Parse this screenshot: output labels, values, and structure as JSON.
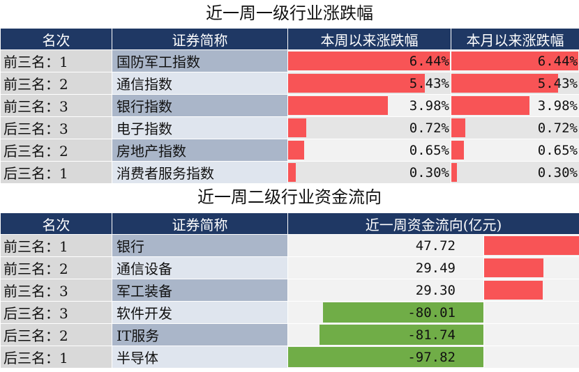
{
  "title1": "近一周一级行业涨跌幅",
  "title2": "近一周二级行业资金流向",
  "table1": {
    "headers": [
      "名次",
      "证券简称",
      "本周以来涨跌幅",
      "本月以来涨跌幅"
    ],
    "rows": [
      {
        "rank": "前三名：1",
        "name": "国防军工指数",
        "week": 6.44,
        "week_label": "6.44%",
        "month": 6.44,
        "month_label": "6.44%"
      },
      {
        "rank": "前三名：2",
        "name": "通信指数",
        "week": 5.43,
        "week_label": "5.43%",
        "month": 5.43,
        "month_label": "5.43%"
      },
      {
        "rank": "前三名：3",
        "name": "银行指数",
        "week": 3.98,
        "week_label": "3.98%",
        "month": 3.98,
        "month_label": "3.98%"
      },
      {
        "rank": "后三名：3",
        "name": "电子指数",
        "week": 0.72,
        "week_label": "0.72%",
        "month": 0.72,
        "month_label": "0.72%"
      },
      {
        "rank": "后三名：2",
        "name": "房地产指数",
        "week": 0.65,
        "week_label": "0.65%",
        "month": 0.65,
        "month_label": "0.65%"
      },
      {
        "rank": "后三名：1",
        "name": "消费者服务指数",
        "week": 0.3,
        "week_label": "0.30%",
        "month": 0.3,
        "month_label": "0.30%"
      }
    ]
  },
  "table2": {
    "headers": [
      "名次",
      "证券简称",
      "近一周资金流向(亿元)"
    ],
    "rows": [
      {
        "rank": "前三名：1",
        "name": "银行",
        "flow": 47.72,
        "flow_label": "47.72"
      },
      {
        "rank": "前三名：2",
        "name": "通信设备",
        "flow": 29.49,
        "flow_label": "29.49"
      },
      {
        "rank": "前三名：3",
        "name": "军工装备",
        "flow": 29.3,
        "flow_label": "29.30"
      },
      {
        "rank": "后三名：3",
        "name": "软件开发",
        "flow": -80.01,
        "flow_label": "-80.01"
      },
      {
        "rank": "后三名：2",
        "name": "IT服务",
        "flow": -81.74,
        "flow_label": "-81.74"
      },
      {
        "rank": "后三名：1",
        "name": "半导体",
        "flow": -97.82,
        "flow_label": "-97.82"
      }
    ]
  },
  "chart_data": [
    {
      "type": "table",
      "title": "近一周一级行业涨跌幅",
      "categories": [
        "国防军工指数",
        "通信指数",
        "银行指数",
        "电子指数",
        "房地产指数",
        "消费者服务指数"
      ],
      "series": [
        {
          "name": "本周以来涨跌幅",
          "values": [
            6.44,
            5.43,
            3.98,
            0.72,
            0.65,
            0.3
          ]
        },
        {
          "name": "本月以来涨跌幅",
          "values": [
            6.44,
            5.43,
            3.98,
            0.72,
            0.65,
            0.3
          ]
        }
      ]
    },
    {
      "type": "table",
      "title": "近一周二级行业资金流向",
      "categories": [
        "银行",
        "通信设备",
        "军工装备",
        "软件开发",
        "IT服务",
        "半导体"
      ],
      "series": [
        {
          "name": "近一周资金流向(亿元)",
          "values": [
            47.72,
            29.49,
            29.3,
            -80.01,
            -81.74,
            -97.82
          ]
        }
      ]
    }
  ],
  "colors": {
    "header_bg": "#1f3864",
    "positive_bar": "#f85456",
    "negative_bar": "#70ad47"
  }
}
